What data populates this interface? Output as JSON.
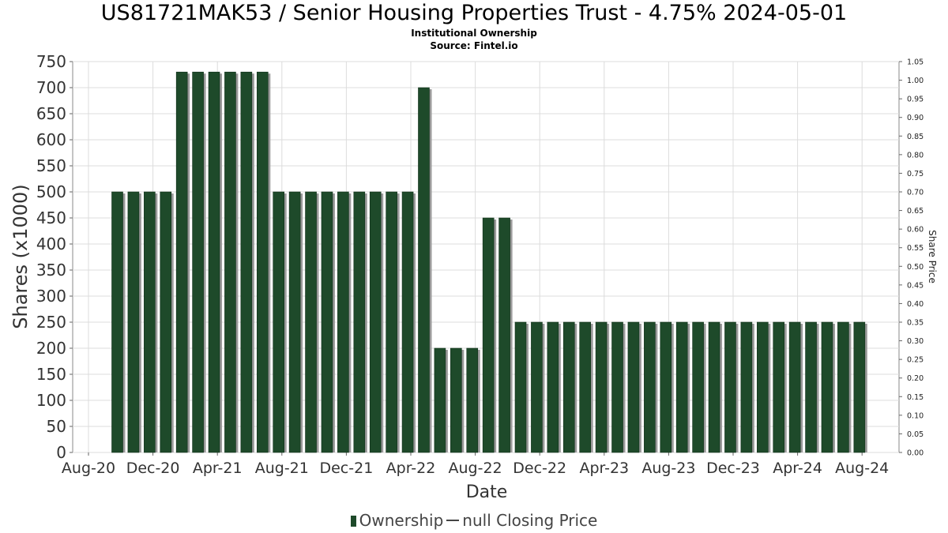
{
  "title": "US81721MAK53 / Senior Housing Properties Trust - 4.75% 2024-05-01",
  "subtitle": "Institutional Ownership",
  "source": "Source: Fintel.io",
  "legend": {
    "ownership": "Ownership",
    "closing_price": "null Closing Price"
  },
  "colors": {
    "bar": "#1e4a2a",
    "bar_shadow": "#9a9a9a",
    "grid": "#dcdcdc"
  },
  "chart_data": {
    "type": "bar",
    "xlabel": "Date",
    "ylabel": "Shares (x1000)",
    "y2label": "Share Price",
    "ylim": [
      0,
      750
    ],
    "y2lim": [
      0,
      1.05
    ],
    "yticks": [
      "0",
      "50",
      "100",
      "150",
      "200",
      "250",
      "300",
      "350",
      "400",
      "450",
      "500",
      "550",
      "600",
      "650",
      "700",
      "750"
    ],
    "y2ticks": [
      "0.00",
      "0.05",
      "0.10",
      "0.15",
      "0.20",
      "0.25",
      "0.30",
      "0.35",
      "0.40",
      "0.45",
      "0.50",
      "0.55",
      "0.60",
      "0.65",
      "0.70",
      "0.75",
      "0.80",
      "0.85",
      "0.90",
      "0.95",
      "1.00",
      "1.05"
    ],
    "xticks": [
      "Aug-20",
      "Dec-20",
      "Apr-21",
      "Aug-21",
      "Dec-21",
      "Apr-22",
      "Aug-22",
      "Dec-22",
      "Apr-23",
      "Aug-23",
      "Dec-23",
      "Apr-24",
      "Aug-24"
    ],
    "grid": true,
    "legend_position": "bottom",
    "series": [
      {
        "name": "Ownership",
        "values": [
          500,
          500,
          500,
          500,
          730,
          730,
          730,
          730,
          730,
          730,
          500,
          500,
          500,
          500,
          500,
          500,
          500,
          500,
          500,
          700,
          200,
          200,
          200,
          450,
          450,
          250,
          250,
          250,
          250,
          250,
          250,
          250,
          250,
          250,
          250,
          250,
          250,
          250,
          250,
          250,
          250,
          250,
          250,
          250,
          250,
          250,
          250
        ]
      }
    ]
  }
}
